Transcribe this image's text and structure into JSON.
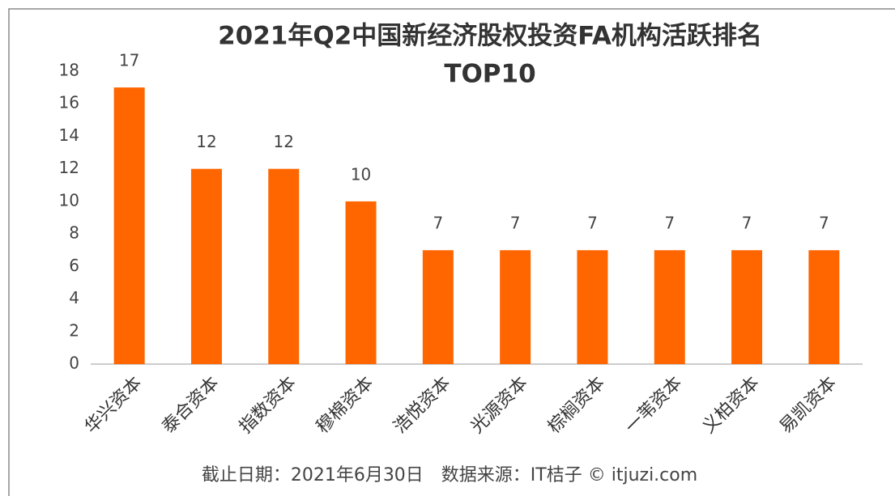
{
  "chart_data": {
    "type": "bar",
    "title": [
      "2021年Q2中国新经济股权投资FA机构活跃排名",
      "TOP10"
    ],
    "categories": [
      "华兴资本",
      "泰合资本",
      "指数资本",
      "穆棉资本",
      "浩悦资本",
      "光源资本",
      "棕榈资本",
      "一苇资本",
      "义柏资本",
      "易凯资本"
    ],
    "values": [
      17,
      12,
      12,
      10,
      7,
      7,
      7,
      7,
      7,
      7
    ],
    "color": "#ff6600",
    "ylim": [
      0,
      18
    ],
    "yticks": [
      0,
      2,
      4,
      6,
      8,
      10,
      12,
      14,
      16,
      18
    ],
    "grid": false,
    "note": "截止日期：2021年6月30日　数据来源：IT桔子 © itjuzi.com"
  }
}
